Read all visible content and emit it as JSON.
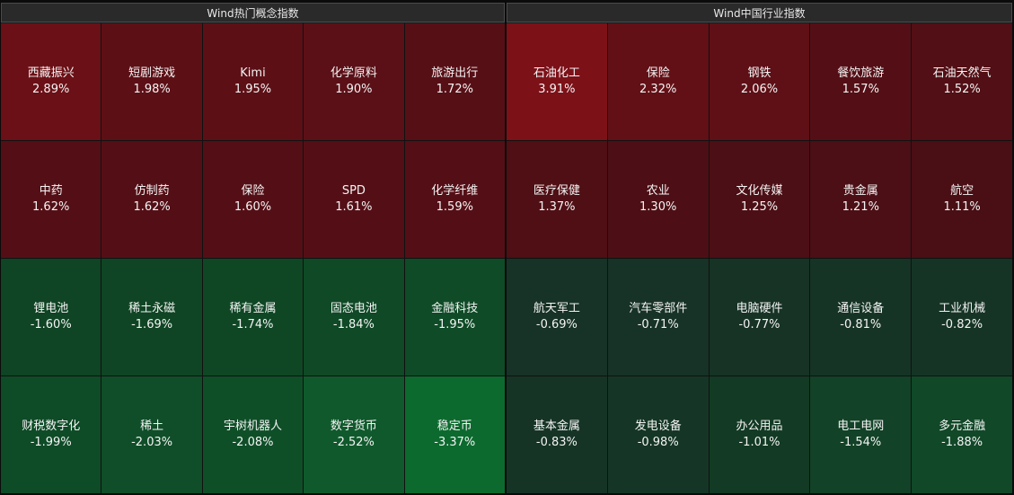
{
  "panels": [
    {
      "title": "Wind热门概念指数",
      "tiles": [
        {
          "name": "西藏振兴",
          "value": "2.89%",
          "color": "#6b1016"
        },
        {
          "name": "短剧游戏",
          "value": "1.98%",
          "color": "#5c1016"
        },
        {
          "name": "Kimi",
          "value": "1.95%",
          "color": "#5c1016"
        },
        {
          "name": "化学原料",
          "value": "1.90%",
          "color": "#5b1017"
        },
        {
          "name": "旅游出行",
          "value": "1.72%",
          "color": "#570f16"
        },
        {
          "name": "中药",
          "value": "1.62%",
          "color": "#540f16"
        },
        {
          "name": "仿制药",
          "value": "1.62%",
          "color": "#540f16"
        },
        {
          "name": "保险",
          "value": "1.60%",
          "color": "#540f16"
        },
        {
          "name": "SPD",
          "value": "1.61%",
          "color": "#540f16"
        },
        {
          "name": "化学纤维",
          "value": "1.59%",
          "color": "#540f16"
        },
        {
          "name": "锂电池",
          "value": "-1.60%",
          "color": "#0f4424"
        },
        {
          "name": "稀土永磁",
          "value": "-1.69%",
          "color": "#0f4524"
        },
        {
          "name": "稀有金属",
          "value": "-1.74%",
          "color": "#0f4725"
        },
        {
          "name": "固态电池",
          "value": "-1.84%",
          "color": "#0f4926"
        },
        {
          "name": "金融科技",
          "value": "-1.95%",
          "color": "#0f4b27"
        },
        {
          "name": "财税数字化",
          "value": "-1.99%",
          "color": "#0e4b27"
        },
        {
          "name": "稀土",
          "value": "-2.03%",
          "color": "#0f4e28"
        },
        {
          "name": "宇树机器人",
          "value": "-2.08%",
          "color": "#0f4f28"
        },
        {
          "name": "数字货币",
          "value": "-2.52%",
          "color": "#10592c"
        },
        {
          "name": "稳定币",
          "value": "-3.37%",
          "color": "#0c6a2e"
        }
      ]
    },
    {
      "title": "Wind中国行业指数",
      "tiles": [
        {
          "name": "石油化工",
          "value": "3.91%",
          "color": "#7c1118"
        },
        {
          "name": "保险",
          "value": "2.32%",
          "color": "#621016"
        },
        {
          "name": "钢铁",
          "value": "2.06%",
          "color": "#5e1016"
        },
        {
          "name": "餐饮旅游",
          "value": "1.57%",
          "color": "#540f16"
        },
        {
          "name": "石油天然气",
          "value": "1.52%",
          "color": "#520f15"
        },
        {
          "name": "医疗保健",
          "value": "1.37%",
          "color": "#4f0f15"
        },
        {
          "name": "农业",
          "value": "1.30%",
          "color": "#4d0f15"
        },
        {
          "name": "文化传媒",
          "value": "1.25%",
          "color": "#4c0f15"
        },
        {
          "name": "贵金属",
          "value": "1.21%",
          "color": "#4b0f15"
        },
        {
          "name": "航空",
          "value": "1.11%",
          "color": "#490f15"
        },
        {
          "name": "航天军工",
          "value": "-0.69%",
          "color": "#173226"
        },
        {
          "name": "汽车零部件",
          "value": "-0.71%",
          "color": "#173226"
        },
        {
          "name": "电脑硬件",
          "value": "-0.77%",
          "color": "#173326"
        },
        {
          "name": "通信设备",
          "value": "-0.81%",
          "color": "#163426"
        },
        {
          "name": "工业机械",
          "value": "-0.82%",
          "color": "#163426"
        },
        {
          "name": "基本金属",
          "value": "-0.83%",
          "color": "#163426"
        },
        {
          "name": "发电设备",
          "value": "-0.98%",
          "color": "#153626"
        },
        {
          "name": "办公用品",
          "value": "-1.01%",
          "color": "#133a24"
        },
        {
          "name": "电工电网",
          "value": "-1.54%",
          "color": "#124227"
        },
        {
          "name": "多元金融",
          "value": "-1.88%",
          "color": "#114828"
        }
      ]
    }
  ]
}
